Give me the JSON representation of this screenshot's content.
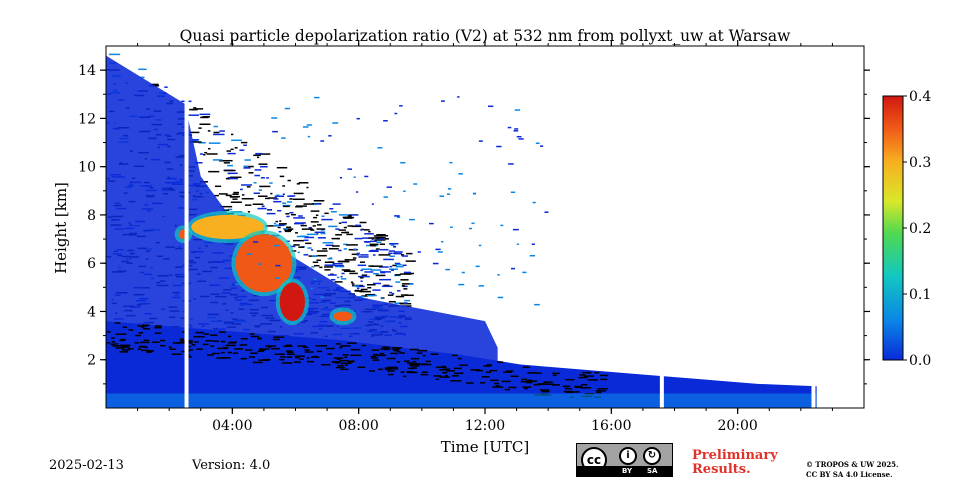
{
  "chart_data": {
    "type": "heatmap",
    "title": "Quasi particle depolarization ratio (V2) at 532 nm from pollyxt_uw at Warsaw",
    "xlabel": "Time [UTC]",
    "ylabel": "Height [km]",
    "xlim": [
      0,
      24
    ],
    "ylim": [
      0,
      15
    ],
    "x_ticks": [
      {
        "value": 4,
        "label": "04:00"
      },
      {
        "value": 8,
        "label": "08:00"
      },
      {
        "value": 12,
        "label": "12:00"
      },
      {
        "value": 16,
        "label": "16:00"
      },
      {
        "value": 20,
        "label": "20:00"
      }
    ],
    "y_ticks": [
      {
        "value": 2,
        "label": "2"
      },
      {
        "value": 4,
        "label": "4"
      },
      {
        "value": 6,
        "label": "6"
      },
      {
        "value": 8,
        "label": "8"
      },
      {
        "value": 10,
        "label": "10"
      },
      {
        "value": 12,
        "label": "12"
      },
      {
        "value": 14,
        "label": "14"
      }
    ],
    "colorbar": {
      "range": [
        0.0,
        0.4
      ],
      "ticks": [
        {
          "value": 0.0,
          "label": "0.0"
        },
        {
          "value": 0.1,
          "label": "0.1"
        },
        {
          "value": 0.2,
          "label": "0.2"
        },
        {
          "value": 0.3,
          "label": "0.3"
        },
        {
          "value": 0.4,
          "label": "0.4"
        }
      ],
      "colors": [
        "#0a2ad8",
        "#0a86e6",
        "#12c8c0",
        "#50d850",
        "#d8e82a",
        "#f8b020",
        "#f05818",
        "#d01810"
      ]
    },
    "data_gaps_utc": [
      2.55,
      17.6,
      22.4
    ],
    "layers": [
      {
        "name": "boundary-layer",
        "start": 0.0,
        "end": 22.5,
        "top_km": [
          3.6,
          3.4,
          3.2,
          3.0,
          2.8,
          2.5,
          2.2,
          1.8,
          1.6,
          1.4,
          1.2,
          1.0,
          0.9
        ],
        "value": 0.02
      },
      {
        "name": "elevated-depol-layer-a",
        "t_start": 2.7,
        "t_end": 5.0,
        "h_start_km": 7.0,
        "h_end_km": 8.0,
        "value": 0.3
      },
      {
        "name": "elevated-depol-layer-b",
        "t_start": 4.1,
        "t_end": 5.9,
        "h_start_km": 4.8,
        "h_end_km": 7.2,
        "value": 0.36
      },
      {
        "name": "elevated-depol-layer-c",
        "t_start": 5.5,
        "t_end": 6.3,
        "h_start_km": 3.6,
        "h_end_km": 5.2,
        "value": 0.38
      },
      {
        "name": "elevated-depol-layer-d",
        "t_start": 7.2,
        "t_end": 7.8,
        "h_start_km": 3.6,
        "h_end_km": 4.0,
        "value": 0.35
      },
      {
        "name": "elevated-depol-layer-e",
        "t_start": 2.3,
        "t_end": 2.6,
        "h_start_km": 7.0,
        "h_end_km": 7.4,
        "value": 0.32
      }
    ]
  },
  "footer": {
    "date": "2025-02-13",
    "version": "Version: 4.0",
    "license_badge": {
      "left": "BY",
      "right": "SA",
      "cc": "cc"
    },
    "preliminary_line1": "Preliminary",
    "preliminary_line2": "Results.",
    "copyright_line1": "© TROPOS & UW 2025.",
    "copyright_line2": "CC BY SA 4.0 License."
  }
}
